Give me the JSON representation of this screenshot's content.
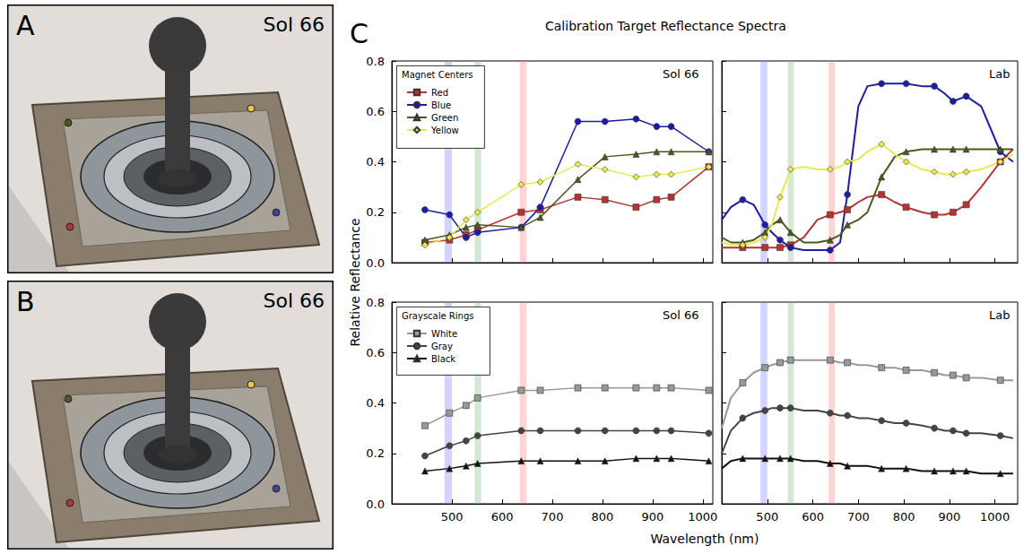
{
  "figure": {
    "letter": "C",
    "title": "Calibration Target Reflectance Spectra",
    "xlabel": "Wavelength (nm)",
    "ylabel": "Relative Reflectance"
  },
  "photos": [
    {
      "letter": "A",
      "label": "Sol 66"
    },
    {
      "letter": "B",
      "label": "Sol 66"
    }
  ],
  "chart_data": [
    {
      "type": "line",
      "label": "Sol 66",
      "legend": "upper left",
      "legend_title": "Magnet Centers",
      "grid": false,
      "tick_labels": "y",
      "x": [
        446,
        495,
        528,
        551,
        638,
        676,
        751,
        805,
        867,
        908,
        937,
        1012
      ],
      "xlim": [
        380,
        1020
      ],
      "xticks": [
        500,
        600,
        700,
        800,
        900,
        1000
      ],
      "ylim": [
        0,
        0.8
      ],
      "yticks": [
        {
          "value": 0,
          "label": "0.0"
        },
        {
          "value": 0.2,
          "label": "0.2"
        },
        {
          "value": 0.4,
          "label": "0.4"
        },
        {
          "value": 0.6,
          "label": "0.6"
        },
        {
          "value": 0.8,
          "label": "0.8"
        }
      ],
      "bands": [
        {
          "from": 485,
          "to": 500,
          "color": "#8080ff"
        },
        {
          "from": 545,
          "to": 558,
          "color": "#80c080"
        },
        {
          "from": 635,
          "to": 648,
          "color": "#ff8080"
        }
      ],
      "series": [
        {
          "name": "Red",
          "color": "#b83232",
          "marker": "square",
          "values": [
            0.08,
            0.09,
            0.11,
            0.13,
            0.2,
            0.21,
            0.26,
            0.25,
            0.22,
            0.25,
            0.26,
            0.38
          ]
        },
        {
          "name": "Blue",
          "color": "#1c1ca8",
          "marker": "circle",
          "values": [
            0.21,
            0.19,
            0.1,
            0.12,
            0.14,
            0.22,
            0.56,
            0.56,
            0.57,
            0.54,
            0.54,
            0.44
          ]
        },
        {
          "name": "Green",
          "color": "#4a5a1c",
          "marker": "triangle",
          "values": [
            0.09,
            0.11,
            0.14,
            0.15,
            0.14,
            0.18,
            0.33,
            0.42,
            0.43,
            0.44,
            0.44,
            0.44
          ]
        },
        {
          "name": "Yellow",
          "color": "#e6ea50",
          "marker": "diamond",
          "values": [
            0.07,
            0.1,
            0.17,
            0.2,
            0.31,
            0.32,
            0.39,
            0.37,
            0.34,
            0.35,
            0.35,
            0.38
          ]
        }
      ]
    },
    {
      "type": "line",
      "label": "Lab",
      "grid": false,
      "tick_labels": false,
      "x": [
        400,
        420,
        446,
        470,
        495,
        510,
        528,
        551,
        580,
        610,
        638,
        660,
        676,
        700,
        720,
        751,
        780,
        805,
        840,
        867,
        890,
        908,
        937,
        970,
        1012,
        1040
      ],
      "marker_x": [
        446,
        495,
        528,
        551,
        638,
        676,
        751,
        805,
        867,
        908,
        937,
        1012
      ],
      "xlim": [
        400,
        1050
      ],
      "xticks": [
        500,
        600,
        700,
        800,
        900,
        1000
      ],
      "ylim": [
        0,
        0.8
      ],
      "yticks": [
        {
          "value": 0,
          "label": "0.0"
        },
        {
          "value": 0.2,
          "label": "0.2"
        },
        {
          "value": 0.4,
          "label": "0.4"
        },
        {
          "value": 0.6,
          "label": "0.6"
        },
        {
          "value": 0.8,
          "label": "0.8"
        }
      ],
      "bands": [
        {
          "from": 485,
          "to": 500,
          "color": "#8080ff"
        },
        {
          "from": 545,
          "to": 558,
          "color": "#80c080"
        },
        {
          "from": 635,
          "to": 648,
          "color": "#ff8080"
        }
      ],
      "series": [
        {
          "name": "Red",
          "color": "#b83232",
          "marker": "square",
          "values": [
            0.06,
            0.06,
            0.06,
            0.06,
            0.06,
            0.06,
            0.06,
            0.07,
            0.1,
            0.17,
            0.19,
            0.2,
            0.21,
            0.24,
            0.26,
            0.27,
            0.24,
            0.22,
            0.2,
            0.19,
            0.19,
            0.2,
            0.23,
            0.3,
            0.4,
            0.45
          ]
        },
        {
          "name": "Blue",
          "color": "#1c1ca8",
          "marker": "circle",
          "values": [
            0.17,
            0.22,
            0.25,
            0.23,
            0.15,
            0.12,
            0.09,
            0.06,
            0.05,
            0.05,
            0.05,
            0.08,
            0.27,
            0.62,
            0.7,
            0.71,
            0.71,
            0.71,
            0.7,
            0.7,
            0.67,
            0.64,
            0.66,
            0.62,
            0.44,
            0.4
          ]
        },
        {
          "name": "Green",
          "color": "#4a5a1c",
          "marker": "triangle",
          "values": [
            0.1,
            0.08,
            0.08,
            0.09,
            0.12,
            0.15,
            0.17,
            0.12,
            0.08,
            0.08,
            0.09,
            0.11,
            0.15,
            0.17,
            0.2,
            0.34,
            0.42,
            0.44,
            0.45,
            0.45,
            0.45,
            0.45,
            0.45,
            0.45,
            0.45,
            0.45
          ]
        },
        {
          "name": "Yellow",
          "color": "#e6ea50",
          "marker": "diamond",
          "values": [
            0.08,
            0.07,
            0.07,
            0.08,
            0.1,
            0.15,
            0.26,
            0.37,
            0.38,
            0.37,
            0.37,
            0.38,
            0.4,
            0.41,
            0.44,
            0.47,
            0.43,
            0.4,
            0.37,
            0.36,
            0.35,
            0.35,
            0.36,
            0.37,
            0.4,
            0.43
          ]
        }
      ]
    },
    {
      "type": "line",
      "label": "Sol 66",
      "legend": "upper left",
      "legend_title": "Grayscale Rings",
      "grid": false,
      "tick_labels": true,
      "x": [
        446,
        495,
        528,
        551,
        638,
        676,
        751,
        805,
        867,
        908,
        937,
        1012
      ],
      "xlim": [
        380,
        1020
      ],
      "xticks": [
        500,
        600,
        700,
        800,
        900,
        1000
      ],
      "ylim": [
        0,
        0.8
      ],
      "yticks": [
        {
          "value": 0,
          "label": "0.0"
        },
        {
          "value": 0.2,
          "label": "0.2"
        },
        {
          "value": 0.4,
          "label": "0.4"
        },
        {
          "value": 0.6,
          "label": "0.6"
        },
        {
          "value": 0.8,
          "label": "0.8"
        }
      ],
      "bands": [
        {
          "from": 485,
          "to": 500,
          "color": "#8080ff"
        },
        {
          "from": 545,
          "to": 558,
          "color": "#80c080"
        },
        {
          "from": 635,
          "to": 648,
          "color": "#ff8080"
        }
      ],
      "series": [
        {
          "name": "White",
          "color": "#999999",
          "marker": "square",
          "values": [
            0.31,
            0.36,
            0.39,
            0.42,
            0.45,
            0.45,
            0.46,
            0.46,
            0.46,
            0.46,
            0.46,
            0.45
          ]
        },
        {
          "name": "Gray",
          "color": "#444444",
          "marker": "circle",
          "values": [
            0.19,
            0.23,
            0.25,
            0.27,
            0.29,
            0.29,
            0.29,
            0.29,
            0.29,
            0.29,
            0.29,
            0.28
          ]
        },
        {
          "name": "Black",
          "color": "#111111",
          "marker": "triangle",
          "values": [
            0.13,
            0.14,
            0.15,
            0.16,
            0.17,
            0.17,
            0.17,
            0.17,
            0.18,
            0.18,
            0.18,
            0.17
          ]
        }
      ]
    },
    {
      "type": "line",
      "label": "Lab",
      "grid": false,
      "tick_labels": "x",
      "x": [
        400,
        420,
        446,
        470,
        495,
        510,
        528,
        551,
        580,
        610,
        638,
        660,
        676,
        700,
        720,
        751,
        780,
        805,
        840,
        867,
        890,
        908,
        937,
        970,
        1012,
        1040
      ],
      "marker_x": [
        446,
        495,
        528,
        551,
        638,
        676,
        751,
        805,
        867,
        908,
        937,
        1012
      ],
      "xlim": [
        400,
        1050
      ],
      "xticks": [
        500,
        600,
        700,
        800,
        900,
        1000
      ],
      "ylim": [
        0,
        0.8
      ],
      "yticks": [
        {
          "value": 0,
          "label": "0.0"
        },
        {
          "value": 0.2,
          "label": "0.2"
        },
        {
          "value": 0.4,
          "label": "0.4"
        },
        {
          "value": 0.6,
          "label": "0.6"
        },
        {
          "value": 0.8,
          "label": "0.8"
        }
      ],
      "bands": [
        {
          "from": 485,
          "to": 500,
          "color": "#8080ff"
        },
        {
          "from": 545,
          "to": 558,
          "color": "#80c080"
        },
        {
          "from": 635,
          "to": 648,
          "color": "#ff8080"
        }
      ],
      "series": [
        {
          "name": "White",
          "color": "#999999",
          "marker": "square",
          "values": [
            0.3,
            0.42,
            0.48,
            0.52,
            0.54,
            0.55,
            0.56,
            0.57,
            0.57,
            0.57,
            0.57,
            0.56,
            0.56,
            0.55,
            0.55,
            0.54,
            0.54,
            0.53,
            0.53,
            0.52,
            0.51,
            0.51,
            0.5,
            0.5,
            0.49,
            0.49
          ]
        },
        {
          "name": "Gray",
          "color": "#444444",
          "marker": "circle",
          "values": [
            0.2,
            0.29,
            0.34,
            0.36,
            0.37,
            0.38,
            0.38,
            0.38,
            0.37,
            0.37,
            0.36,
            0.35,
            0.35,
            0.34,
            0.34,
            0.33,
            0.32,
            0.32,
            0.31,
            0.3,
            0.29,
            0.29,
            0.28,
            0.28,
            0.27,
            0.26
          ]
        },
        {
          "name": "Black",
          "color": "#111111",
          "marker": "triangle",
          "values": [
            0.14,
            0.17,
            0.18,
            0.18,
            0.18,
            0.18,
            0.18,
            0.18,
            0.17,
            0.17,
            0.16,
            0.16,
            0.15,
            0.15,
            0.15,
            0.14,
            0.14,
            0.14,
            0.13,
            0.13,
            0.13,
            0.13,
            0.13,
            0.12,
            0.12,
            0.12
          ]
        }
      ]
    }
  ]
}
